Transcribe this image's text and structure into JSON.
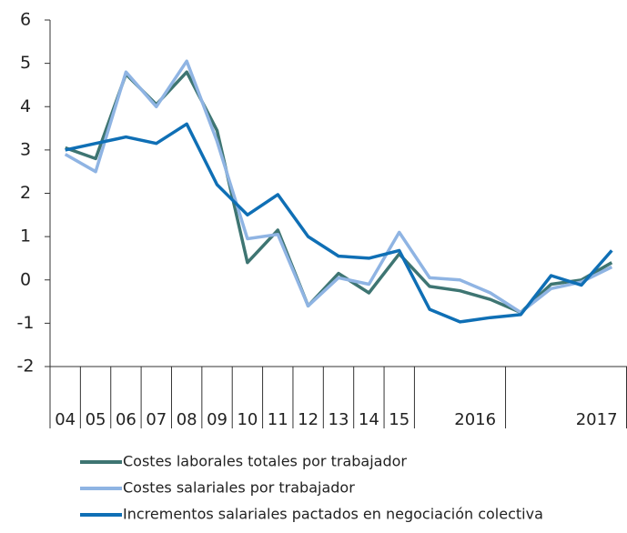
{
  "chart_data": {
    "type": "line",
    "categories": [
      "04",
      "05",
      "06",
      "07",
      "08",
      "09",
      "10",
      "11",
      "12",
      "13",
      "14",
      "15",
      null,
      "2016",
      null,
      null,
      null,
      "2017",
      null
    ],
    "series": [
      {
        "name": "Costes laborales totales por trabajador",
        "color": "#3e7572",
        "values": [
          3.05,
          2.8,
          4.75,
          4.05,
          4.8,
          3.45,
          0.4,
          1.15,
          -0.6,
          0.15,
          -0.3,
          0.6,
          -0.15,
          -0.25,
          -0.45,
          -0.75,
          -0.1,
          0.0,
          0.4
        ]
      },
      {
        "name": "Costes salariales por trabajador",
        "color": "#8fb4e3",
        "values": [
          2.9,
          2.5,
          4.8,
          4.0,
          5.05,
          3.2,
          0.95,
          1.05,
          -0.6,
          0.05,
          -0.1,
          1.1,
          0.05,
          0.0,
          -0.3,
          -0.75,
          -0.2,
          -0.05,
          0.3
        ]
      },
      {
        "name": "Incrementos salariales pactados en negociación colectiva",
        "color": "#0f6fb5",
        "values": [
          3.0,
          3.15,
          3.3,
          3.15,
          3.6,
          2.2,
          1.5,
          1.97,
          1.0,
          0.55,
          0.5,
          0.68,
          -0.68,
          -0.97,
          -0.87,
          -0.8,
          0.1,
          -0.12,
          0.68
        ]
      }
    ],
    "ylim": [
      -2,
      6
    ],
    "yticks": [
      -2,
      -1,
      0,
      1,
      2,
      3,
      4,
      5,
      6
    ],
    "grid": false
  }
}
